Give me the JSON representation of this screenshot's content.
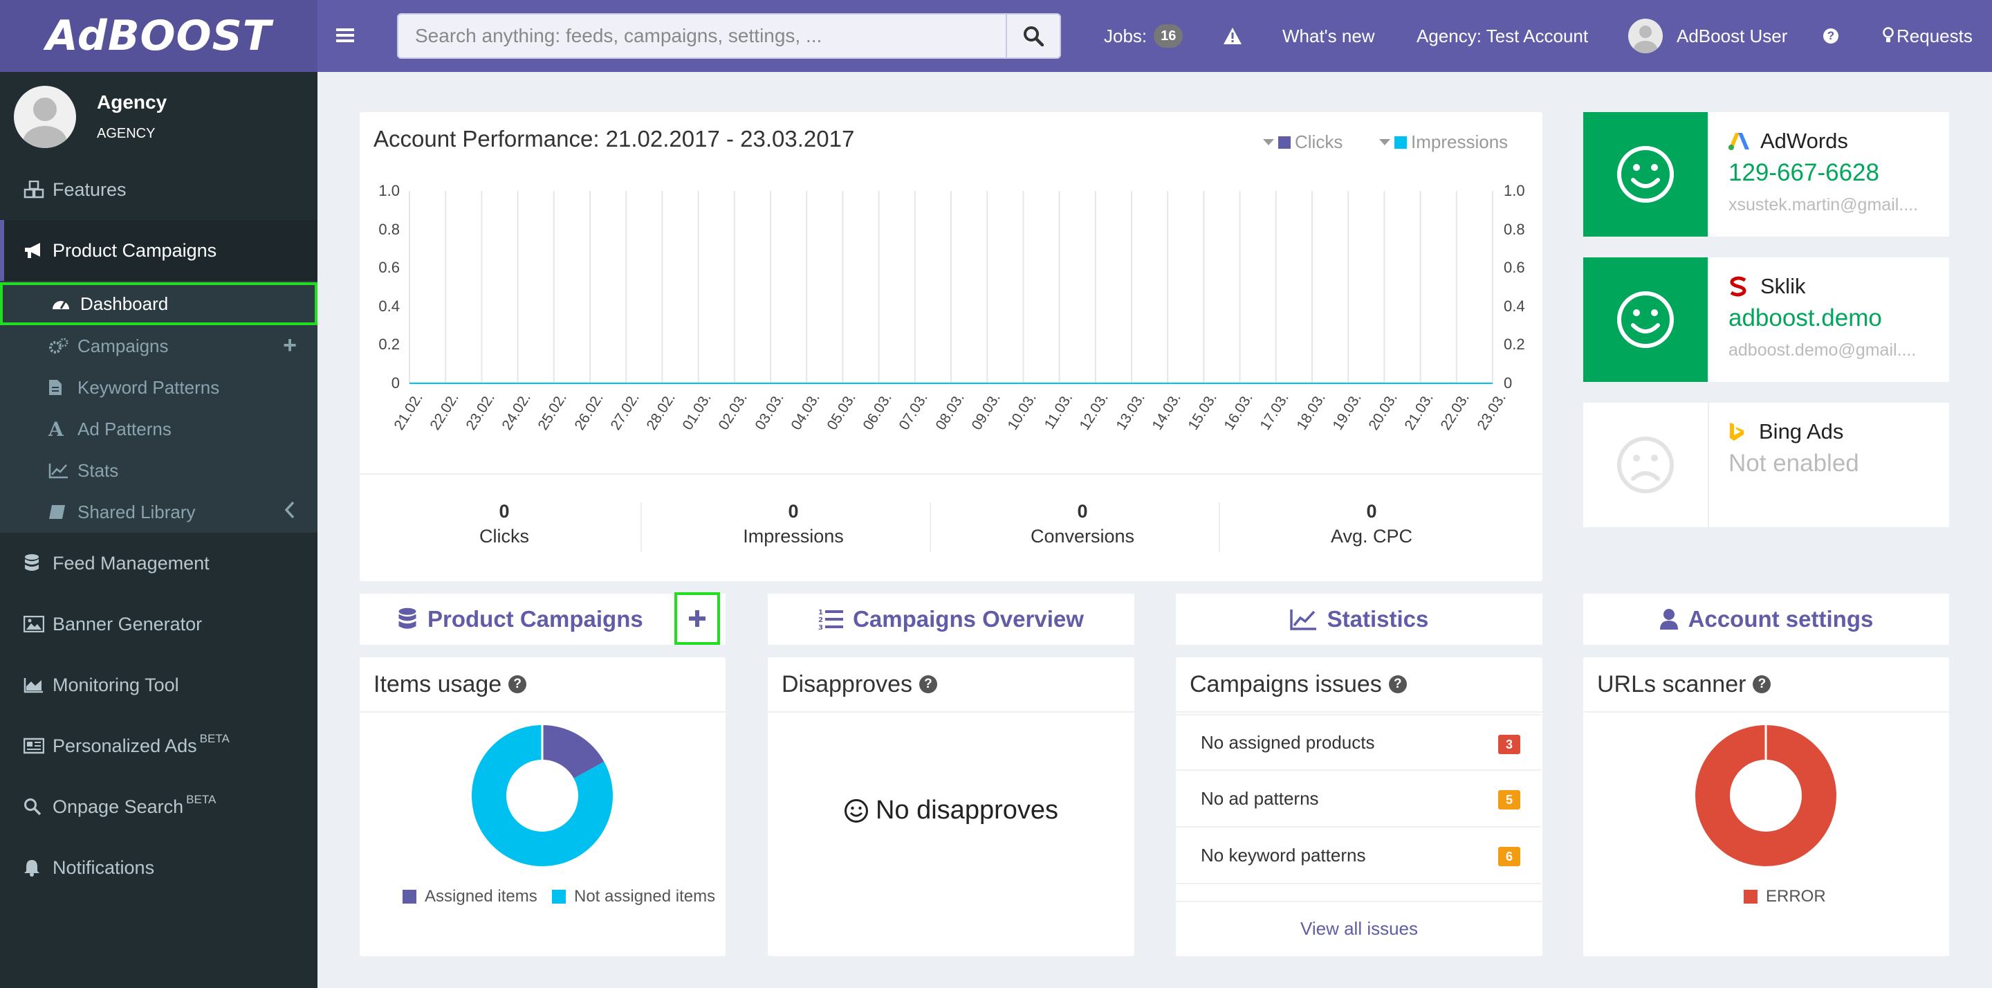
{
  "header": {
    "logo": "AdBOOST",
    "search_placeholder": "Search anything: feeds, campaigns, settings, ...",
    "jobs_label": "Jobs:",
    "jobs_count": "16",
    "whats_new": "What's new",
    "agency": "Agency: Test Account",
    "user": "AdBoost User",
    "requests": "Requests"
  },
  "sidebar": {
    "profile_name": "Agency",
    "profile_role": "AGENCY",
    "features": "Features",
    "product_campaigns": "Product Campaigns",
    "sub": {
      "dashboard": "Dashboard",
      "campaigns": "Campaigns",
      "keyword_patterns": "Keyword Patterns",
      "ad_patterns": "Ad Patterns",
      "stats": "Stats",
      "shared_library": "Shared Library"
    },
    "feed_management": "Feed Management",
    "banner_generator": "Banner Generator",
    "monitoring_tool": "Monitoring Tool",
    "personalized_ads": "Personalized Ads",
    "onpage_search": "Onpage Search",
    "beta": "BETA",
    "notifications": "Notifications"
  },
  "performance": {
    "title": "Account Performance: 21.02.2017 - 23.03.2017",
    "legend_clicks": "Clicks",
    "legend_impressions": "Impressions",
    "color_clicks": "#605ca8",
    "color_impressions": "#00c0ef",
    "stats": [
      {
        "value": "0",
        "label": "Clicks"
      },
      {
        "value": "0",
        "label": "Impressions"
      },
      {
        "value": "0",
        "label": "Conversions"
      },
      {
        "value": "0",
        "label": "Avg. CPC"
      }
    ]
  },
  "chart_data": {
    "type": "line",
    "title": "Account Performance: 21.02.2017 - 23.03.2017",
    "categories": [
      "21.02.",
      "22.02.",
      "23.02.",
      "24.02.",
      "25.02.",
      "26.02.",
      "27.02.",
      "28.02.",
      "01.03.",
      "02.03.",
      "03.03.",
      "04.03.",
      "05.03.",
      "06.03.",
      "07.03.",
      "08.03.",
      "09.03.",
      "10.03.",
      "11.03.",
      "12.03.",
      "13.03.",
      "14.03.",
      "15.03.",
      "16.03.",
      "17.03.",
      "18.03.",
      "19.03.",
      "20.03.",
      "21.03.",
      "22.03.",
      "23.03."
    ],
    "series": [
      {
        "name": "Clicks",
        "values": [
          0,
          0,
          0,
          0,
          0,
          0,
          0,
          0,
          0,
          0,
          0,
          0,
          0,
          0,
          0,
          0,
          0,
          0,
          0,
          0,
          0,
          0,
          0,
          0,
          0,
          0,
          0,
          0,
          0,
          0,
          0
        ]
      },
      {
        "name": "Impressions",
        "values": [
          0,
          0,
          0,
          0,
          0,
          0,
          0,
          0,
          0,
          0,
          0,
          0,
          0,
          0,
          0,
          0,
          0,
          0,
          0,
          0,
          0,
          0,
          0,
          0,
          0,
          0,
          0,
          0,
          0,
          0,
          0
        ]
      }
    ],
    "y_ticks": [
      "0",
      "0.2",
      "0.4",
      "0.6",
      "0.8",
      "1.0"
    ],
    "ylim": [
      0,
      1
    ],
    "legend_position": "top-right",
    "grid": "vertical"
  },
  "accounts": [
    {
      "name": "AdWords",
      "id": "129-667-6628",
      "email": "xsustek.martin@gmail....",
      "status": "ok"
    },
    {
      "name": "Sklik",
      "id": "adboost.demo",
      "email": "adboost.demo@gmail....",
      "status": "ok"
    },
    {
      "name": "Bing Ads",
      "id": "Not enabled",
      "email": "",
      "status": "disabled"
    }
  ],
  "nav_panels": {
    "product_campaigns": "Product Campaigns",
    "campaigns_overview": "Campaigns Overview",
    "statistics": "Statistics",
    "account_settings": "Account settings"
  },
  "items_usage": {
    "title": "Items usage",
    "assigned_label": "Assigned items",
    "not_assigned_label": "Not assigned items",
    "assigned_fraction": 0.17,
    "not_assigned_fraction": 0.83
  },
  "disapproves": {
    "title": "Disapproves",
    "message": "No disapproves"
  },
  "campaign_issues": {
    "title": "Campaigns issues",
    "rows": [
      {
        "label": "No assigned products",
        "count": "3",
        "color": "#dd4b39"
      },
      {
        "label": "No ad patterns",
        "count": "5",
        "color": "#f39c12"
      },
      {
        "label": "No keyword patterns",
        "count": "6",
        "color": "#f39c12"
      }
    ],
    "view_all": "View all issues"
  },
  "urls_scanner": {
    "title": "URLs scanner",
    "legend": "ERROR",
    "error_fraction": 1.0,
    "color_error": "#dd4b39"
  }
}
